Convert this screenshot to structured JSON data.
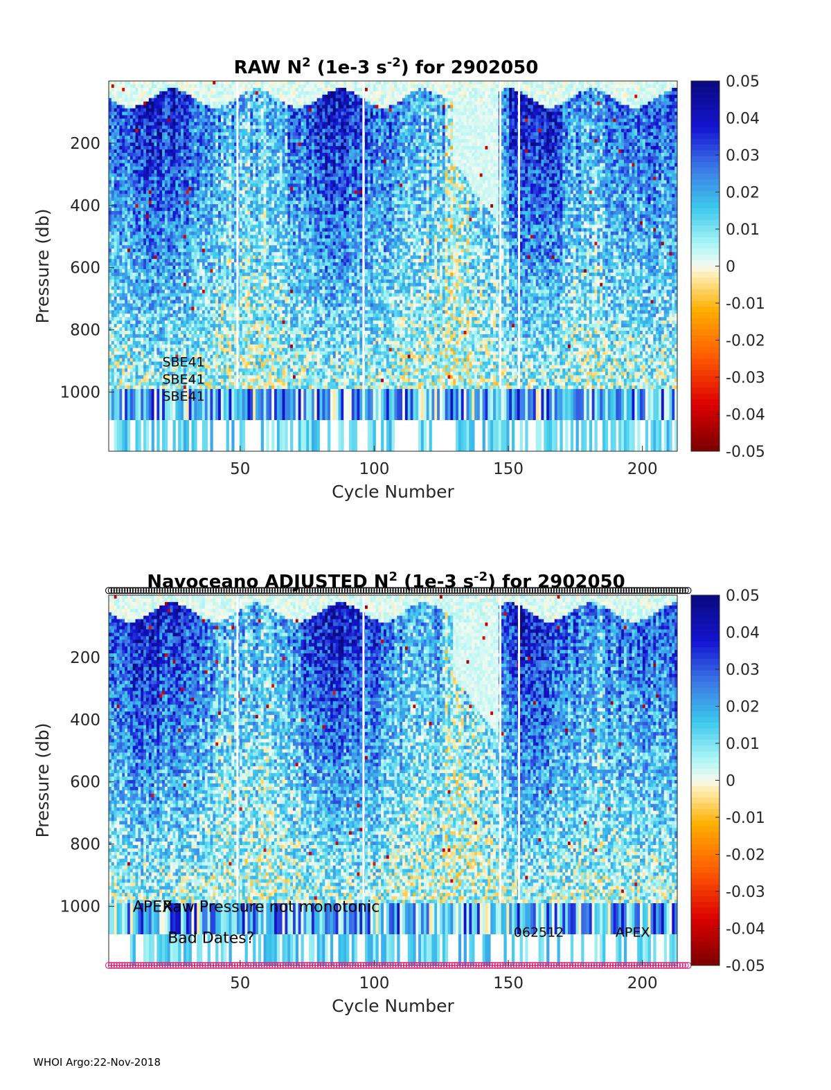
{
  "chart_data": [
    {
      "type": "heatmap",
      "title_prefix": "RAW N",
      "title_sup1": "2",
      "title_mid": " (1e-3 s",
      "title_sup2": "-2",
      "title_suffix": ") for 2902050",
      "xlabel": "Cycle Number",
      "ylabel": "Pressure (db)",
      "xlim": [
        1,
        213
      ],
      "ylim": [
        1190,
        0
      ],
      "xticks": [
        50,
        100,
        150,
        200
      ],
      "yticks": [
        200,
        400,
        600,
        800,
        1000
      ],
      "colorbar": {
        "range": [
          -0.05,
          0.05
        ],
        "ticks": [
          "0.05",
          "0.04",
          "0.03",
          "0.02",
          "0.01",
          "0",
          "-0.01",
          "-0.02",
          "-0.03",
          "-0.04",
          "-0.05"
        ]
      },
      "gap_cycles": [
        49,
        96,
        147,
        154
      ],
      "annotations": [
        {
          "text": "SBE41",
          "x": 21,
          "y": 900
        },
        {
          "text": "SBE41",
          "x": 21,
          "y": 955
        },
        {
          "text": "SBE41",
          "x": 21,
          "y": 1010
        }
      ],
      "marker_rows": []
    },
    {
      "type": "heatmap",
      "title_prefix": "Navoceano  ADJUSTED N",
      "title_sup1": "2",
      "title_mid": " (1e-3 s",
      "title_sup2": "-2",
      "title_suffix": ") for 2902050",
      "xlabel": "Cycle Number",
      "ylabel": "Pressure (db)",
      "xlim": [
        1,
        213
      ],
      "ylim": [
        1190,
        0
      ],
      "xticks": [
        50,
        100,
        150,
        200
      ],
      "yticks": [
        200,
        400,
        600,
        800,
        1000
      ],
      "colorbar": {
        "range": [
          -0.05,
          0.05
        ],
        "ticks": [
          "0.05",
          "0.04",
          "0.03",
          "0.02",
          "0.01",
          "0",
          "-0.01",
          "-0.02",
          "-0.03",
          "-0.04",
          "-0.05"
        ]
      },
      "gap_cycles": [
        49,
        96,
        147,
        154
      ],
      "annotations": [
        {
          "text": "APEX",
          "x": 10,
          "y": 1000
        },
        {
          "text": "Raw Pressure not monotonic",
          "x": 21,
          "y": 1000
        },
        {
          "text": "Bad Dates?",
          "x": 23,
          "y": 1100
        },
        {
          "text": "062512",
          "x": 152,
          "y": 1080
        },
        {
          "text": "APEX",
          "x": 190,
          "y": 1080
        }
      ],
      "marker_rows": [
        {
          "y": -15,
          "color": "#000000"
        },
        {
          "y": 1190,
          "color": "#e0207a"
        }
      ]
    }
  ],
  "footer": "WHOI Argo:22-Nov-2018"
}
